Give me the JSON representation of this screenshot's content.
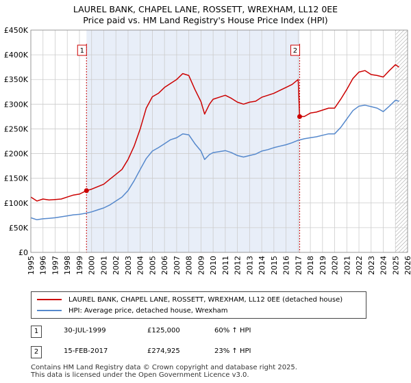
{
  "title_line1": "LAUREL BANK, CHAPEL LANE, ROSSETT, WREXHAM, LL12 0EE",
  "title_line2": "Price paid vs. HM Land Registry's House Price Index (HPI)",
  "colors": {
    "red": "#cc0000",
    "blue": "#5588cc",
    "shade": "#e8eef8",
    "grid": "#cccccc"
  },
  "legend": {
    "red_label": "LAUREL BANK, CHAPEL LANE, ROSSETT, WREXHAM, LL12 0EE (detached house)",
    "blue_label": "HPI: Average price, detached house, Wrexham"
  },
  "transactions": [
    {
      "num": "1",
      "date": "30-JUL-1999",
      "price": "£125,000",
      "hpi": "60% ↑ HPI"
    },
    {
      "num": "2",
      "date": "15-FEB-2017",
      "price": "£274,925",
      "hpi": "23% ↑ HPI"
    }
  ],
  "footer_line1": "Contains HM Land Registry data © Crown copyright and database right 2025.",
  "footer_line2": "This data is licensed under the Open Government Licence v3.0.",
  "chart_data": {
    "type": "line",
    "xlim": [
      1995,
      2026
    ],
    "ylim": [
      0,
      450000
    ],
    "y_ticks": [
      0,
      50000,
      100000,
      150000,
      200000,
      250000,
      300000,
      350000,
      400000,
      450000
    ],
    "y_tick_labels": [
      "£0",
      "£50K",
      "£100K",
      "£150K",
      "£200K",
      "£250K",
      "£300K",
      "£350K",
      "£400K",
      "£450K"
    ],
    "x_ticks": [
      1995,
      1996,
      1997,
      1998,
      1999,
      2000,
      2001,
      2002,
      2003,
      2004,
      2005,
      2006,
      2007,
      2008,
      2009,
      2010,
      2011,
      2012,
      2013,
      2014,
      2015,
      2016,
      2017,
      2018,
      2019,
      2020,
      2021,
      2022,
      2023,
      2024,
      2025,
      2026
    ],
    "x_tick_labels": [
      "1995",
      "1996",
      "1997",
      "1998",
      "1999",
      "2000",
      "2001",
      "2002",
      "2003",
      "2004",
      "2005",
      "2006",
      "2007",
      "2008",
      "2009",
      "2010",
      "2011",
      "2012",
      "2013",
      "2014",
      "2015",
      "2016",
      "2017",
      "2018",
      "2019",
      "2020",
      "2021",
      "2022",
      "2023",
      "2024",
      "2025",
      "2026"
    ],
    "shaded_range": [
      1999.58,
      2017.12
    ],
    "hatched_from": 2025.0,
    "markers": [
      {
        "label": "1",
        "x": 1999.58,
        "y": 125000
      },
      {
        "label": "2",
        "x": 2017.12,
        "y": 274925
      }
    ],
    "series": [
      {
        "name": "LAUREL BANK, CHAPEL LANE, ROSSETT, WREXHAM, LL12 0EE (detached house)",
        "color": "#cc0000",
        "x": [
          1995.0,
          1995.5,
          1996.0,
          1996.5,
          1997.0,
          1997.5,
          1998.0,
          1998.5,
          1999.0,
          1999.58,
          2000.0,
          2000.5,
          2001.0,
          2001.5,
          2002.0,
          2002.5,
          2003.0,
          2003.5,
          2004.0,
          2004.5,
          2005.0,
          2005.5,
          2006.0,
          2006.5,
          2007.0,
          2007.5,
          2008.0,
          2008.5,
          2009.0,
          2009.3,
          2009.7,
          2010.0,
          2010.5,
          2011.0,
          2011.5,
          2012.0,
          2012.5,
          2013.0,
          2013.5,
          2014.0,
          2014.5,
          2015.0,
          2015.5,
          2016.0,
          2016.5,
          2017.0,
          2017.12,
          2017.5,
          2018.0,
          2018.5,
          2019.0,
          2019.5,
          2020.0,
          2020.5,
          2021.0,
          2021.5,
          2022.0,
          2022.5,
          2023.0,
          2023.5,
          2024.0,
          2024.5,
          2025.0,
          2025.3
        ],
        "y": [
          112000,
          104000,
          108000,
          106000,
          107000,
          108000,
          112000,
          116000,
          118000,
          125000,
          128000,
          133000,
          138000,
          148000,
          158000,
          168000,
          188000,
          215000,
          250000,
          292000,
          315000,
          322000,
          334000,
          342000,
          350000,
          362000,
          358000,
          330000,
          305000,
          280000,
          300000,
          310000,
          314000,
          318000,
          312000,
          304000,
          300000,
          304000,
          306000,
          314000,
          318000,
          322000,
          328000,
          334000,
          340000,
          350000,
          274925,
          275000,
          282000,
          284000,
          288000,
          292000,
          292000,
          310000,
          330000,
          352000,
          365000,
          368000,
          360000,
          358000,
          355000,
          368000,
          380000,
          375000
        ]
      },
      {
        "name": "HPI: Average price, detached house, Wrexham",
        "color": "#5588cc",
        "x": [
          1995.0,
          1995.5,
          1996.0,
          1996.5,
          1997.0,
          1997.5,
          1998.0,
          1998.5,
          1999.0,
          1999.5,
          2000.0,
          2000.5,
          2001.0,
          2001.5,
          2002.0,
          2002.5,
          2003.0,
          2003.5,
          2004.0,
          2004.5,
          2005.0,
          2005.5,
          2006.0,
          2006.5,
          2007.0,
          2007.5,
          2008.0,
          2008.5,
          2009.0,
          2009.3,
          2009.7,
          2010.0,
          2010.5,
          2011.0,
          2011.5,
          2012.0,
          2012.5,
          2013.0,
          2013.5,
          2014.0,
          2014.5,
          2015.0,
          2015.5,
          2016.0,
          2016.5,
          2017.0,
          2017.5,
          2018.0,
          2018.5,
          2019.0,
          2019.5,
          2020.0,
          2020.5,
          2021.0,
          2021.5,
          2022.0,
          2022.5,
          2023.0,
          2023.5,
          2024.0,
          2024.5,
          2025.0,
          2025.3
        ],
        "y": [
          70000,
          66000,
          68000,
          69000,
          70000,
          72000,
          74000,
          76000,
          77000,
          79000,
          82000,
          86000,
          90000,
          96000,
          104000,
          112000,
          125000,
          145000,
          168000,
          190000,
          205000,
          212000,
          220000,
          228000,
          232000,
          240000,
          238000,
          220000,
          205000,
          188000,
          198000,
          202000,
          204000,
          206000,
          202000,
          196000,
          193000,
          196000,
          199000,
          205000,
          208000,
          212000,
          215000,
          218000,
          222000,
          227000,
          230000,
          232000,
          234000,
          237000,
          240000,
          240000,
          253000,
          270000,
          287000,
          296000,
          298000,
          295000,
          292000,
          285000,
          296000,
          308000,
          306000
        ]
      }
    ]
  }
}
